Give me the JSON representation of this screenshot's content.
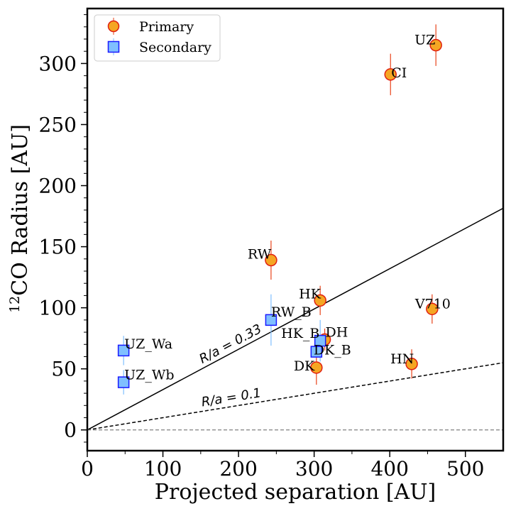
{
  "chart_data": {
    "type": "scatter",
    "xlabel": "Projected separation [AU]",
    "ylabel_sup": "12",
    "ylabel": "CO Radius [AU]",
    "xlim": [
      0,
      550
    ],
    "ylim": [
      -17,
      345
    ],
    "x_ticks": [
      0,
      100,
      200,
      300,
      400,
      500
    ],
    "y_ticks": [
      0,
      50,
      100,
      150,
      200,
      250,
      300
    ],
    "grid": false,
    "legend_position": "top-left",
    "series": [
      {
        "name": "Primary",
        "marker": "circle",
        "color": "#f5a623",
        "edge_color": "#e02010",
        "errorbar_color": "#e8431a",
        "points": [
          {
            "label": "UZ",
            "x": 461,
            "y": 315,
            "yerr": 17
          },
          {
            "label": "CI",
            "x": 401,
            "y": 291,
            "yerr": 17
          },
          {
            "label": "RW",
            "x": 243,
            "y": 139,
            "yerr": 16
          },
          {
            "label": "HK",
            "x": 308,
            "y": 106,
            "yerr": 12
          },
          {
            "label": "V710",
            "x": 456,
            "y": 99,
            "yerr": 12
          },
          {
            "label": "DH",
            "x": 314,
            "y": 74,
            "yerr": 9
          },
          {
            "label": "DK",
            "x": 303,
            "y": 51,
            "yerr": 14
          },
          {
            "label": "HN",
            "x": 429,
            "y": 54,
            "yerr": 12
          }
        ]
      },
      {
        "name": "Secondary",
        "marker": "square",
        "color": "#7fbfff",
        "edge_color": "#1a1aff",
        "errorbar_color": "#7fbfff",
        "points": [
          {
            "label": "RW_B",
            "x": 243,
            "y": 90,
            "yerr": 21
          },
          {
            "label": "UZ_Wa",
            "x": 48,
            "y": 65,
            "yerr": 12
          },
          {
            "label": "UZ_Wb",
            "x": 48,
            "y": 39,
            "yerr": 10
          },
          {
            "label": "HK_B",
            "x": 308,
            "y": 73,
            "yerr": 17
          },
          {
            "label": "DK_B",
            "x": 303,
            "y": 64,
            "yerr": 5
          }
        ]
      }
    ],
    "reference_lines": [
      {
        "label": "R/a = 0.33",
        "slope": 0.33,
        "style": "solid",
        "color": "#000000"
      },
      {
        "label": "R/a = 0.1",
        "slope": 0.1,
        "style": "dashed",
        "color": "#000000"
      },
      {
        "label": "",
        "y": 0,
        "style": "dashed",
        "color": "#808080"
      }
    ]
  }
}
